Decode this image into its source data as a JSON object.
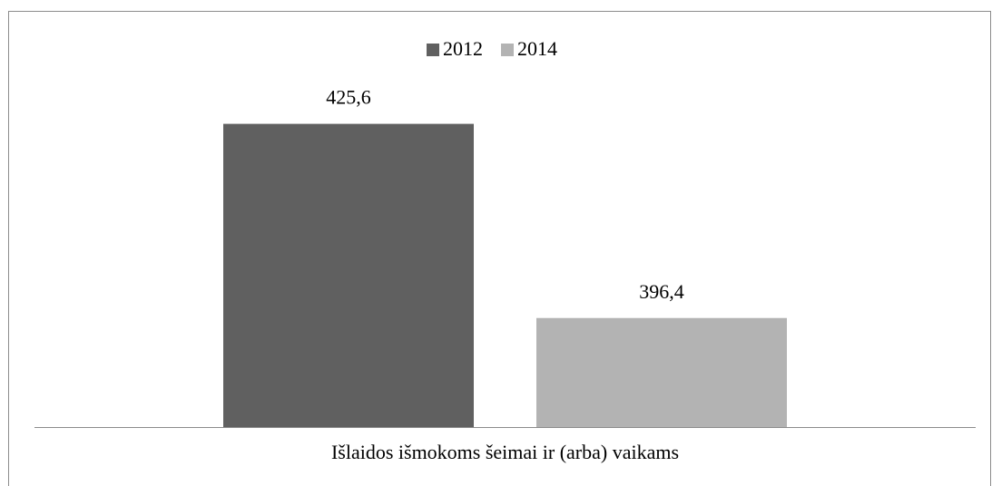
{
  "chart_data": {
    "type": "bar",
    "categories": [
      "Išlaidos išmokoms šeimai ir (arba) vaikams"
    ],
    "series": [
      {
        "name": "2012",
        "color": "#606060",
        "values": [
          425.6
        ],
        "value_labels": [
          "425,6"
        ]
      },
      {
        "name": "2014",
        "color": "#b3b3b3",
        "values": [
          396.4
        ],
        "value_labels": [
          "396,4"
        ]
      }
    ],
    "ylim": [
      380,
      440
    ],
    "legend": "top"
  }
}
